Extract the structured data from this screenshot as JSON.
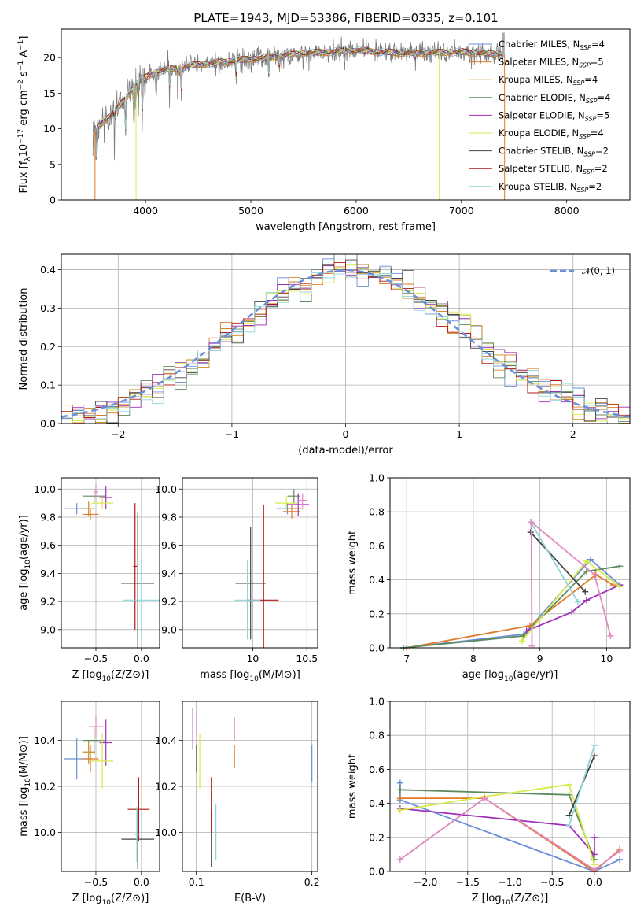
{
  "figure": {
    "title": "PLATE=1943, MJD=53386, FIBERID=0335, z=0.101"
  },
  "colors": {
    "chabrier_miles": "#6a8fd8",
    "salpeter_miles": "#e07b27",
    "kroupa_miles": "#c98a20",
    "chabrier_elodie": "#5e8a5e",
    "salpeter_elodie": "#9e2fb8",
    "kroupa_elodie": "#d8ea48",
    "chabrier_stelib": "#444444",
    "salpeter_stelib": "#b01818",
    "kroupa_stelib": "#8fd4d8",
    "pink": "#e288c0",
    "normal": "#6a8fd8",
    "grid": "#b0b0b0"
  },
  "legend_spectrum": [
    {
      "model": "Chabrier MILES",
      "n": "4",
      "color_key": "chabrier_miles"
    },
    {
      "model": "Salpeter MILES",
      "n": "5",
      "color_key": "salpeter_miles"
    },
    {
      "model": "Kroupa MILES",
      "n": "4",
      "color_key": "kroupa_miles"
    },
    {
      "model": "Chabrier ELODIE",
      "n": "4",
      "color_key": "chabrier_elodie"
    },
    {
      "model": "Salpeter ELODIE",
      "n": "5",
      "color_key": "salpeter_elodie"
    },
    {
      "model": "Kroupa ELODIE",
      "n": "4",
      "color_key": "kroupa_elodie"
    },
    {
      "model": "Chabrier STELIB",
      "n": "2",
      "color_key": "chabrier_stelib"
    },
    {
      "model": "Salpeter STELIB",
      "n": "2",
      "color_key": "salpeter_stelib"
    },
    {
      "model": "Kroupa STELIB",
      "n": "2",
      "color_key": "kroupa_stelib"
    }
  ],
  "legend_prefix_n": "N",
  "legend_sub_n": "SSP",
  "chart_data": [
    {
      "id": "spectrum",
      "type": "line",
      "xlabel": "wavelength [Angstrom, rest frame]",
      "ylabel_parts": [
        "Flux [f",
        "λ",
        "10",
        "−17",
        " erg cm",
        "−2",
        " s",
        "−1",
        " A",
        "−1",
        "]"
      ],
      "xlim": [
        3200,
        8600
      ],
      "ylim": [
        0,
        24
      ],
      "xticks": [
        4000,
        5000,
        6000,
        7000,
        8000
      ],
      "yticks": [
        0,
        5,
        10,
        15,
        20
      ],
      "continuum_knots": [
        [
          3500,
          9.5
        ],
        [
          3600,
          11
        ],
        [
          3700,
          12.5
        ],
        [
          3800,
          14
        ],
        [
          3900,
          16
        ],
        [
          4000,
          17.2
        ],
        [
          4100,
          18
        ],
        [
          4300,
          18.6
        ],
        [
          4500,
          19
        ],
        [
          4800,
          19.5
        ],
        [
          5000,
          19.8
        ],
        [
          5500,
          20.6
        ],
        [
          6000,
          21
        ],
        [
          6500,
          20.6
        ],
        [
          7000,
          20.8
        ],
        [
          7200,
          20.6
        ],
        [
          7400,
          20.5
        ]
      ],
      "data_range": [
        3500,
        7400
      ],
      "dips": [
        [
          3530,
          5
        ],
        [
          3705,
          8
        ],
        [
          3810,
          9
        ],
        [
          3890,
          10
        ],
        [
          3934,
          9
        ],
        [
          3969,
          10
        ],
        [
          4102,
          13
        ],
        [
          4228,
          14
        ],
        [
          4305,
          13
        ],
        [
          4341,
          14
        ],
        [
          4862,
          15.5
        ],
        [
          5170,
          17
        ],
        [
          5270,
          18.5
        ],
        [
          5890,
          19
        ],
        [
          6563,
          19
        ]
      ],
      "spikes": [
        [
          3520,
          0
        ],
        [
          3910,
          0
        ],
        [
          6790,
          0
        ],
        [
          7410,
          0
        ]
      ],
      "gray_spike": [
        7400,
        23.5
      ],
      "grid": false,
      "legend": "top-right"
    },
    {
      "id": "residuals",
      "type": "bar",
      "xlabel": "(data-model)/error",
      "ylabel": "Normed distribution",
      "xlim": [
        -2.5,
        2.5
      ],
      "ylim": [
        0,
        0.44
      ],
      "xticks": [
        -2,
        -1,
        0,
        1,
        2
      ],
      "xtick_labels": [
        "−2",
        "−1",
        "0",
        "1",
        "2"
      ],
      "yticks": [
        0.0,
        0.1,
        0.2,
        0.3,
        0.4
      ],
      "ytick_labels": [
        "0.0",
        "0.1",
        "0.2",
        "0.3",
        "0.4"
      ],
      "bin_width": 0.1,
      "normal_label": "𝒩(0, 1)",
      "grid": true,
      "legend": "top-right"
    },
    {
      "id": "age_vs_Z",
      "type": "scatter",
      "xlabel": "Z [log10(Z/Z⊙)]",
      "ylabel": "age [log10(age/yr)]",
      "xlim": [
        -0.88,
        0.2
      ],
      "ylim": [
        8.87,
        10.08
      ],
      "xticks": [
        -0.5,
        0.0
      ],
      "xtick_labels": [
        "−0.5",
        "0.0"
      ],
      "yticks": [
        9.0,
        9.2,
        9.4,
        9.6,
        9.8,
        10.0
      ],
      "ytick_labels": [
        "9.0",
        "9.2",
        "9.4",
        "9.6",
        "9.8",
        "10.0"
      ],
      "points": [
        {
          "c": "chabrier_miles",
          "x": -0.71,
          "xe": 0.14,
          "y": 9.86,
          "ye": 0.04
        },
        {
          "c": "salpeter_miles",
          "x": -0.56,
          "xe": 0.09,
          "y": 9.82,
          "ye": 0.04
        },
        {
          "c": "kroupa_miles",
          "x": -0.58,
          "xe": 0.07,
          "y": 9.86,
          "ye": 0.05
        },
        {
          "c": "chabrier_elodie",
          "x": -0.52,
          "xe": 0.12,
          "y": 9.95,
          "ye": 0.05
        },
        {
          "c": "salpeter_elodie",
          "x": -0.39,
          "xe": 0.07,
          "y": 9.94,
          "ye": 0.08
        },
        {
          "c": "kroupa_elodie",
          "x": -0.43,
          "xe": 0.12,
          "y": 9.9,
          "ye": 0.04
        },
        {
          "c": "chabrier_stelib",
          "x": -0.04,
          "xe": 0.18,
          "y": 9.33,
          "ye": 0.5
        },
        {
          "c": "salpeter_stelib",
          "x": -0.07,
          "xe": 0.02,
          "y": 9.45,
          "ye": 0.45
        },
        {
          "c": "kroupa_stelib",
          "x": 0.0,
          "xe": 0.2,
          "y": 9.21,
          "ye": 0.28
        },
        {
          "c": "pink",
          "x": -0.5,
          "xe": 0.02,
          "y": 9.98,
          "ye": 0.05
        }
      ],
      "grid": true
    },
    {
      "id": "age_vs_mass",
      "type": "scatter",
      "xlabel": "mass [log10(M/M⊙)]",
      "ylabel": "",
      "xlim": [
        9.35,
        10.6
      ],
      "ylim": [
        8.87,
        10.08
      ],
      "xticks": [
        10,
        10.5
      ],
      "xtick_labels": [
        "10",
        "10.5"
      ],
      "yticks": [
        9.0,
        9.2,
        9.4,
        9.6,
        9.8,
        10.0
      ],
      "ytick_labels": [
        "9.0",
        "9.2",
        "9.4",
        "9.6",
        "9.8",
        "10.0"
      ],
      "points": [
        {
          "c": "chabrier_miles",
          "x": 10.32,
          "xe": 0.1,
          "y": 9.86,
          "ye": 0.04
        },
        {
          "c": "salpeter_miles",
          "x": 10.36,
          "xe": 0.08,
          "y": 9.84,
          "ye": 0.05
        },
        {
          "c": "kroupa_miles",
          "x": 10.4,
          "xe": 0.07,
          "y": 9.86,
          "ye": 0.04
        },
        {
          "c": "chabrier_elodie",
          "x": 10.38,
          "xe": 0.06,
          "y": 9.95,
          "ye": 0.05
        },
        {
          "c": "salpeter_elodie",
          "x": 10.42,
          "xe": 0.1,
          "y": 9.89,
          "ye": 0.08
        },
        {
          "c": "kroupa_elodie",
          "x": 10.31,
          "xe": 0.1,
          "y": 9.9,
          "ye": 0.05
        },
        {
          "c": "chabrier_stelib",
          "x": 9.98,
          "xe": 0.14,
          "y": 9.33,
          "ye": 0.4
        },
        {
          "c": "salpeter_stelib",
          "x": 10.1,
          "xe": 0.14,
          "y": 9.21,
          "ye": 0.68
        },
        {
          "c": "kroupa_stelib",
          "x": 9.95,
          "xe": 0.12,
          "y": 9.21,
          "ye": 0.28
        },
        {
          "c": "pink",
          "x": 10.46,
          "xe": 0.04,
          "y": 9.92,
          "ye": 0.05
        }
      ],
      "grid": true
    },
    {
      "id": "weight_vs_age",
      "type": "line",
      "xlabel": "age [log10(age/yr)]",
      "ylabel": "mass weight",
      "xlim": [
        6.75,
        10.35
      ],
      "ylim": [
        0,
        1
      ],
      "xticks": [
        7,
        8,
        9,
        10
      ],
      "yticks": [
        0.0,
        0.2,
        0.4,
        0.6,
        0.8,
        1.0
      ],
      "ytick_labels": [
        "0.0",
        "0.2",
        "0.4",
        "0.6",
        "0.8",
        "1.0"
      ],
      "series": [
        {
          "c": "chabrier_miles",
          "pts": [
            [
              6.95,
              0.0
            ],
            [
              8.76,
              0.08
            ],
            [
              9.76,
              0.52
            ],
            [
              10.2,
              0.37
            ]
          ]
        },
        {
          "c": "salpeter_miles",
          "pts": [
            [
              7.0,
              0.0
            ],
            [
              8.85,
              0.13
            ],
            [
              9.84,
              0.43
            ],
            [
              10.1,
              0.37
            ]
          ]
        },
        {
          "c": "chabrier_elodie",
          "pts": [
            [
              6.95,
              0.0
            ],
            [
              8.75,
              0.07
            ],
            [
              9.7,
              0.45
            ],
            [
              10.2,
              0.48
            ]
          ]
        },
        {
          "c": "salpeter_elodie",
          "pts": [
            [
              8.8,
              0.1
            ],
            [
              9.48,
              0.21
            ],
            [
              9.7,
              0.28
            ],
            [
              10.2,
              0.37
            ]
          ]
        },
        {
          "c": "kroupa_elodie",
          "pts": [
            [
              8.73,
              0.04
            ],
            [
              9.7,
              0.51
            ],
            [
              10.2,
              0.36
            ]
          ]
        },
        {
          "c": "chabrier_stelib",
          "pts": [
            [
              8.86,
              0.68
            ],
            [
              9.68,
              0.33
            ]
          ]
        },
        {
          "c": "kroupa_stelib",
          "pts": [
            [
              8.86,
              0.74
            ],
            [
              9.57,
              0.27
            ]
          ]
        },
        {
          "c": "pink",
          "pts": [
            [
              8.88,
              0.01
            ],
            [
              8.87,
              0.74
            ],
            [
              9.82,
              0.43
            ],
            [
              10.06,
              0.07
            ]
          ]
        }
      ],
      "grid": true
    },
    {
      "id": "mass_vs_Z",
      "type": "scatter",
      "xlabel": "Z [log10(Z/Z⊙)]",
      "ylabel": "mass [log10(M/M⊙)]",
      "xlim": [
        -0.88,
        0.2
      ],
      "ylim": [
        9.83,
        10.57
      ],
      "xticks": [
        -0.5,
        0.0
      ],
      "xtick_labels": [
        "−0.5",
        "0.0"
      ],
      "yticks": [
        10.0,
        10.2,
        10.4
      ],
      "ytick_labels": [
        "10.0",
        "10.2",
        "10.4"
      ],
      "points": [
        {
          "c": "chabrier_miles",
          "x": -0.71,
          "xe": 0.14,
          "y": 10.32,
          "ye": 0.09
        },
        {
          "c": "salpeter_miles",
          "x": -0.56,
          "xe": 0.09,
          "y": 10.32,
          "ye": 0.06
        },
        {
          "c": "kroupa_miles",
          "x": -0.58,
          "xe": 0.07,
          "y": 10.35,
          "ye": 0.05
        },
        {
          "c": "chabrier_elodie",
          "x": -0.52,
          "xe": 0.12,
          "y": 10.4,
          "ye": 0.06
        },
        {
          "c": "salpeter_elodie",
          "x": -0.39,
          "xe": 0.07,
          "y": 10.39,
          "ye": 0.1
        },
        {
          "c": "kroupa_elodie",
          "x": -0.43,
          "xe": 0.12,
          "y": 10.31,
          "ye": 0.12
        },
        {
          "c": "chabrier_stelib",
          "x": -0.04,
          "xe": 0.18,
          "y": 9.97,
          "ye": 0.13
        },
        {
          "c": "salpeter_stelib",
          "x": -0.03,
          "xe": 0.12,
          "y": 10.1,
          "ye": 0.14
        },
        {
          "c": "kroupa_stelib",
          "x": -0.05,
          "xe": 0.02,
          "y": 9.99,
          "ye": 0.12
        },
        {
          "c": "pink",
          "x": -0.5,
          "xe": 0.08,
          "y": 10.46,
          "ye": 0.05
        }
      ],
      "grid": true
    },
    {
      "id": "mass_vs_EBV",
      "type": "scatter",
      "xlabel": "E(B-V)",
      "ylabel": "",
      "xlim": [
        0.088,
        0.205
      ],
      "ylim": [
        9.83,
        10.57
      ],
      "xticks": [
        0.1,
        0.2
      ],
      "xtick_labels": [
        "0.1",
        "0.2"
      ],
      "yticks": [
        10.0,
        10.2,
        10.4
      ],
      "ytick_labels": [
        "10.0",
        "10.2",
        "10.4"
      ],
      "points": [
        {
          "c": "chabrier_miles",
          "x": 0.2,
          "xe": 0,
          "y": 10.3,
          "ye": 0.08
        },
        {
          "c": "salpeter_miles",
          "x": 0.133,
          "xe": 0,
          "y": 10.33,
          "ye": 0.05
        },
        {
          "c": "chabrier_elodie",
          "x": 0.1,
          "xe": 0,
          "y": 10.32,
          "ye": 0.06
        },
        {
          "c": "salpeter_elodie",
          "x": 0.097,
          "xe": 0,
          "y": 10.45,
          "ye": 0.09
        },
        {
          "c": "kroupa_elodie",
          "x": 0.103,
          "xe": 0,
          "y": 10.31,
          "ye": 0.12
        },
        {
          "c": "chabrier_stelib",
          "x": 0.113,
          "xe": 0,
          "y": 9.97,
          "ye": 0.12
        },
        {
          "c": "salpeter_stelib",
          "x": 0.113,
          "xe": 0,
          "y": 10.12,
          "ye": 0.12
        },
        {
          "c": "kroupa_stelib",
          "x": 0.117,
          "xe": 0,
          "y": 10.0,
          "ye": 0.12
        },
        {
          "c": "pink",
          "x": 0.133,
          "xe": 0,
          "y": 10.45,
          "ye": 0.05
        }
      ],
      "grid": true
    },
    {
      "id": "weight_vs_Z",
      "type": "line",
      "xlabel": "Z [log10(Z/Z⊙)]",
      "ylabel": "mass weight",
      "xlim": [
        -2.42,
        0.42
      ],
      "ylim": [
        0,
        1
      ],
      "xticks": [
        -2.0,
        -1.5,
        -1.0,
        -0.5,
        0.0
      ],
      "xtick_labels": [
        "−2.0",
        "−1.5",
        "−1.0",
        "−0.5",
        "0.0"
      ],
      "yticks": [
        0.0,
        0.2,
        0.4,
        0.6,
        0.8,
        1.0
      ],
      "ytick_labels": [
        "0.0",
        "0.2",
        "0.4",
        "0.6",
        "0.8",
        "1.0"
      ],
      "series": [
        {
          "c": "chabrier_miles",
          "pts": [
            [
              -2.3,
              0.52
            ],
            [
              -2.3,
              0.42
            ],
            [
              0.0,
              0.0
            ],
            [
              0.3,
              0.07
            ]
          ]
        },
        {
          "c": "salpeter_miles",
          "pts": [
            [
              -2.3,
              0.43
            ],
            [
              -1.3,
              0.43
            ],
            [
              0.0,
              0.0
            ],
            [
              0.3,
              0.13
            ]
          ]
        },
        {
          "c": "chabrier_elodie",
          "pts": [
            [
              -2.3,
              0.48
            ],
            [
              -0.3,
              0.45
            ],
            [
              0.0,
              0.07
            ]
          ]
        },
        {
          "c": "salpeter_elodie",
          "pts": [
            [
              -2.3,
              0.37
            ],
            [
              -0.3,
              0.27
            ],
            [
              0.0,
              0.1
            ],
            [
              0.0,
              0.2
            ]
          ]
        },
        {
          "c": "kroupa_elodie",
          "pts": [
            [
              -2.3,
              0.36
            ],
            [
              -1.3,
              0.44
            ],
            [
              -0.3,
              0.51
            ],
            [
              0.0,
              0.04
            ]
          ]
        },
        {
          "c": "chabrier_stelib",
          "pts": [
            [
              -0.3,
              0.33
            ],
            [
              0.0,
              0.68
            ]
          ]
        },
        {
          "c": "kroupa_stelib",
          "pts": [
            [
              -0.3,
              0.27
            ],
            [
              0.0,
              0.74
            ]
          ]
        },
        {
          "c": "pink",
          "pts": [
            [
              -2.3,
              0.07
            ],
            [
              -1.3,
              0.43
            ],
            [
              0.0,
              0.01
            ],
            [
              0.3,
              0.12
            ]
          ]
        }
      ],
      "grid": true
    }
  ]
}
